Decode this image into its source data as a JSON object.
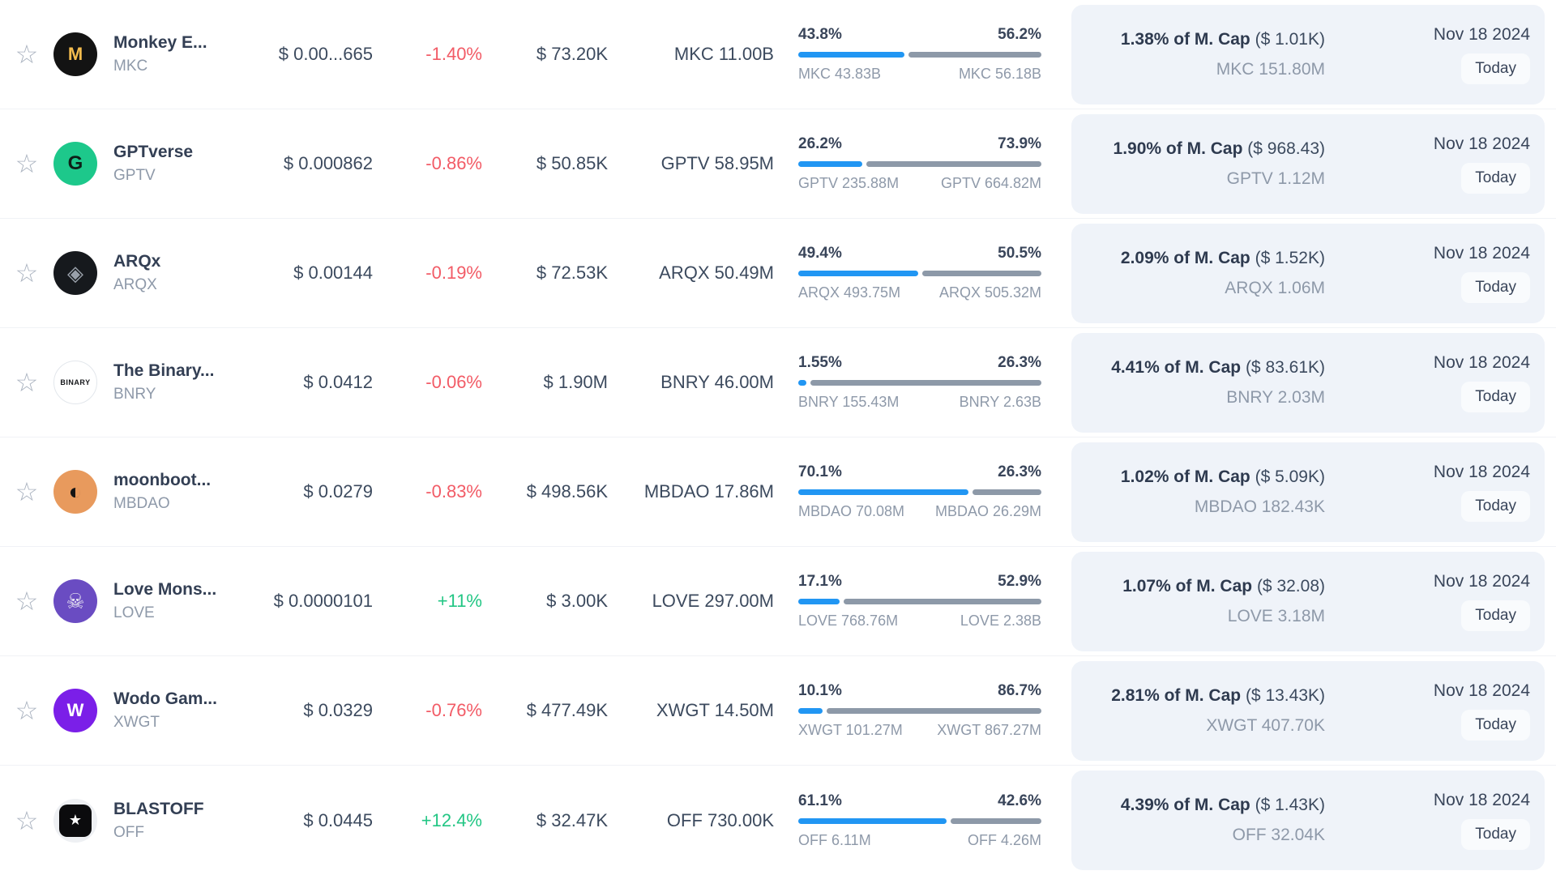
{
  "colors": {
    "bar_unlocked": "#2196f3",
    "bar_locked": "#8d99a8",
    "negative": "#f25b66",
    "positive": "#22c684",
    "panel_bg": "#eff3f9",
    "text_dark": "#39455a",
    "text_gray": "#8e99a9"
  },
  "rows": [
    {
      "name": "Monkey E...",
      "symbol": "MKC",
      "logo": {
        "bg": "#131313",
        "glyph": "M",
        "glyph_color": "#f4bc4e",
        "glyph_size": 22,
        "glyph_weight": 800
      },
      "price": "$ 0.00...665",
      "change": "-1.40%",
      "volume": "$ 73.20K",
      "mcap": "MKC 11.00B",
      "unlock": {
        "pct_left": "43.8%",
        "pct_right": "56.2%",
        "pct_left_value": 43.8,
        "label_left": "MKC 43.83B",
        "label_right": "MKC 56.18B"
      },
      "panel": {
        "mcap_pct": "1.38% of M. Cap",
        "mcap_paren": "($ 1.01K)",
        "amount": "MKC 151.80M"
      },
      "date": "Nov 18 2024",
      "badge": "Today"
    },
    {
      "name": "GPTverse",
      "symbol": "GPTV",
      "logo": {
        "bg": "#1dc88b",
        "glyph": "G",
        "glyph_color": "#0e1f18",
        "glyph_size": 24,
        "glyph_weight": 800
      },
      "price": "$ 0.000862",
      "change": "-0.86%",
      "volume": "$ 50.85K",
      "mcap": "GPTV 58.95M",
      "unlock": {
        "pct_left": "26.2%",
        "pct_right": "73.9%",
        "pct_left_value": 26.2,
        "label_left": "GPTV 235.88M",
        "label_right": "GPTV 664.82M"
      },
      "panel": {
        "mcap_pct": "1.90% of M. Cap",
        "mcap_paren": "($ 968.43)",
        "amount": "GPTV 1.12M"
      },
      "date": "Nov 18 2024",
      "badge": "Today"
    },
    {
      "name": "ARQx",
      "symbol": "ARQX",
      "logo": {
        "bg": "#16191d",
        "glyph": "◈",
        "glyph_color": "#9aa1ab",
        "glyph_size": 26,
        "glyph_weight": 400
      },
      "price": "$ 0.00144",
      "change": "-0.19%",
      "volume": "$ 72.53K",
      "mcap": "ARQX 50.49M",
      "unlock": {
        "pct_left": "49.4%",
        "pct_right": "50.5%",
        "pct_left_value": 49.4,
        "label_left": "ARQX 493.75M",
        "label_right": "ARQX 505.32M"
      },
      "panel": {
        "mcap_pct": "2.09% of M. Cap",
        "mcap_paren": "($ 1.52K)",
        "amount": "ARQX 1.06M"
      },
      "date": "Nov 18 2024",
      "badge": "Today"
    },
    {
      "name": "The Binary...",
      "symbol": "BNRY",
      "logo": {
        "bg": "#ffffff",
        "border": "#e3e7ec",
        "glyph": "BINARY",
        "glyph_color": "#16181b",
        "glyph_size": 9,
        "glyph_weight": 800
      },
      "price": "$ 0.0412",
      "change": "-0.06%",
      "volume": "$ 1.90M",
      "mcap": "BNRY 46.00M",
      "unlock": {
        "pct_left": "1.55%",
        "pct_right": "26.3%",
        "pct_left_value": 1.55,
        "label_left": "BNRY 155.43M",
        "label_right": "BNRY 2.63B"
      },
      "panel": {
        "mcap_pct": "4.41% of M. Cap",
        "mcap_paren": "($ 83.61K)",
        "amount": "BNRY 2.03M"
      },
      "date": "Nov 18 2024",
      "badge": "Today"
    },
    {
      "name": "moonboot...",
      "symbol": "MBDAO",
      "logo": {
        "bg": "#e89a5d",
        "glyph": "◐",
        "glyph_color": "#141414",
        "glyph_size": 28,
        "glyph_weight": 400
      },
      "price": "$ 0.0279",
      "change": "-0.83%",
      "volume": "$ 498.56K",
      "mcap": "MBDAO 17.86M",
      "unlock": {
        "pct_left": "70.1%",
        "pct_right": "26.3%",
        "pct_left_value": 70.1,
        "label_left": "MBDAO 70.08M",
        "label_right": "MBDAO 26.29M"
      },
      "panel": {
        "mcap_pct": "1.02% of M. Cap",
        "mcap_paren": "($ 5.09K)",
        "amount": "MBDAO 182.43K"
      },
      "date": "Nov 18 2024",
      "badge": "Today"
    },
    {
      "name": "Love Mons...",
      "symbol": "LOVE",
      "logo": {
        "bg": "#6a4cc2",
        "glyph": "☠",
        "glyph_color": "#e9e6f2",
        "glyph_size": 26,
        "glyph_weight": 400
      },
      "price": "$ 0.0000101",
      "change": "+11%",
      "volume": "$ 3.00K",
      "mcap": "LOVE 297.00M",
      "unlock": {
        "pct_left": "17.1%",
        "pct_right": "52.9%",
        "pct_left_value": 17.1,
        "label_left": "LOVE 768.76M",
        "label_right": "LOVE 2.38B"
      },
      "panel": {
        "mcap_pct": "1.07% of M. Cap",
        "mcap_paren": "($ 32.08)",
        "amount": "LOVE 3.18M"
      },
      "date": "Nov 18 2024",
      "badge": "Today"
    },
    {
      "name": "Wodo Gam...",
      "symbol": "XWGT",
      "logo": {
        "bg": "#7b1fe8",
        "glyph": "W",
        "glyph_color": "#ffffff",
        "glyph_size": 22,
        "glyph_weight": 800
      },
      "price": "$ 0.0329",
      "change": "-0.76%",
      "volume": "$ 477.49K",
      "mcap": "XWGT 14.50M",
      "unlock": {
        "pct_left": "10.1%",
        "pct_right": "86.7%",
        "pct_left_value": 10.1,
        "label_left": "XWGT 101.27M",
        "label_right": "XWGT 867.27M"
      },
      "panel": {
        "mcap_pct": "2.81% of M. Cap",
        "mcap_paren": "($ 13.43K)",
        "amount": "XWGT 407.70K"
      },
      "date": "Nov 18 2024",
      "badge": "Today"
    },
    {
      "name": "BLASTOFF",
      "symbol": "OFF",
      "logo": {
        "bg": "#eef0f3",
        "inner_bg": "#0b0b0d",
        "glyph": "★",
        "glyph_color": "#ffffff",
        "glyph_size": 18,
        "glyph_weight": 400
      },
      "price": "$ 0.0445",
      "change": "+12.4%",
      "volume": "$ 32.47K",
      "mcap": "OFF 730.00K",
      "unlock": {
        "pct_left": "61.1%",
        "pct_right": "42.6%",
        "pct_left_value": 61.1,
        "label_left": "OFF 6.11M",
        "label_right": "OFF 4.26M"
      },
      "panel": {
        "mcap_pct": "4.39% of M. Cap",
        "mcap_paren": "($ 1.43K)",
        "amount": "OFF 32.04K"
      },
      "date": "Nov 18 2024",
      "badge": "Today"
    }
  ]
}
